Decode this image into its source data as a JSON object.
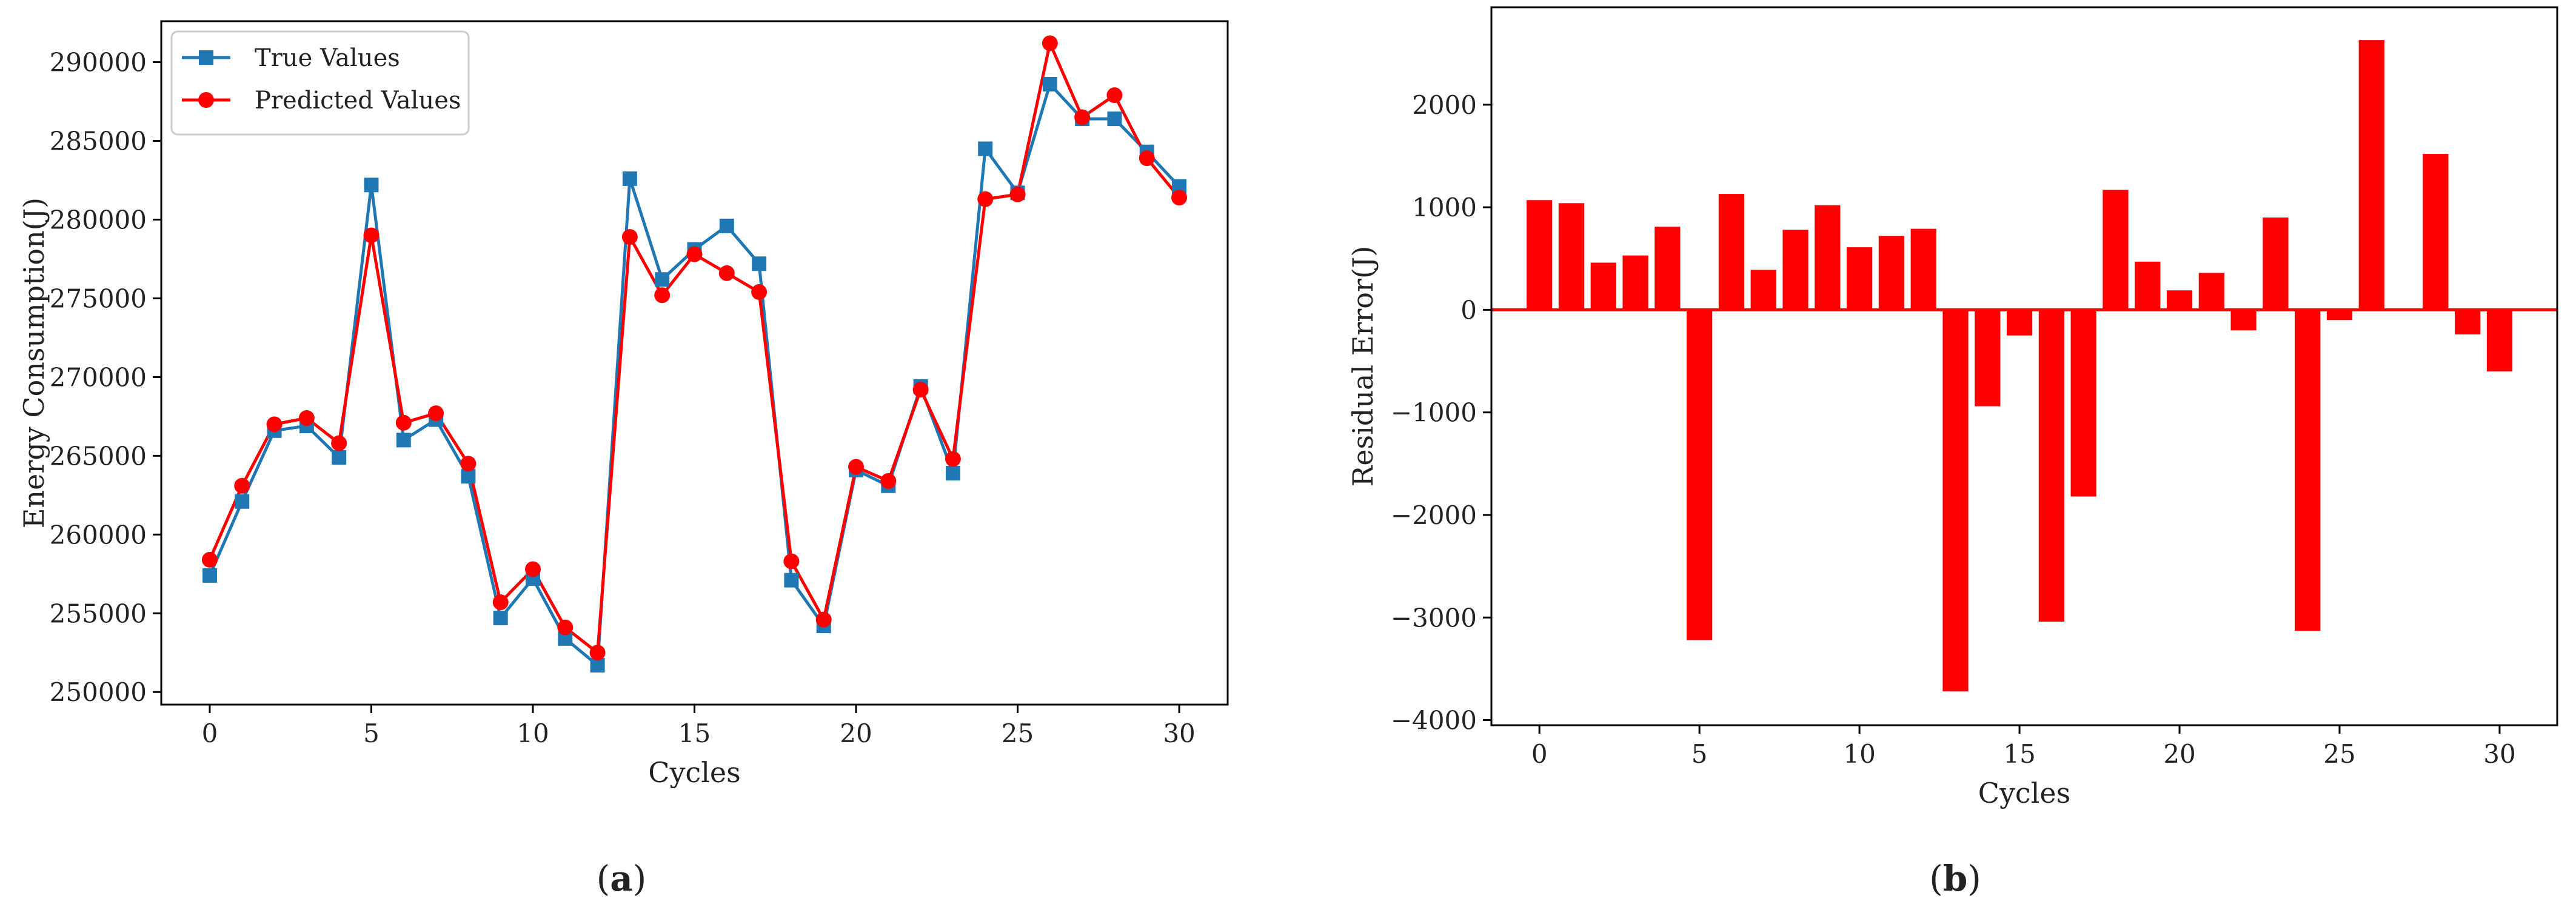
{
  "chart_data": [
    {
      "type": "line",
      "panel_label": {
        "open": "(",
        "letter": "a",
        "close": ")"
      },
      "title": "",
      "xlabel": "Cycles",
      "ylabel": "Energy Consumption(J)",
      "xlim": [
        -1.5,
        31.5
      ],
      "ylim": [
        249200,
        292600
      ],
      "xticks": [
        0,
        5,
        10,
        15,
        20,
        25,
        30
      ],
      "yticks": [
        250000,
        255000,
        260000,
        265000,
        270000,
        275000,
        280000,
        285000,
        290000
      ],
      "grid": false,
      "legend": "top-left",
      "x": [
        0,
        1,
        2,
        3,
        4,
        5,
        6,
        7,
        8,
        9,
        10,
        11,
        12,
        13,
        14,
        15,
        16,
        17,
        18,
        19,
        20,
        21,
        22,
        23,
        24,
        25,
        26,
        27,
        28,
        29,
        30
      ],
      "series": [
        {
          "name": "True Values",
          "color": "#1f77b4",
          "marker": "square",
          "values": [
            257400,
            262100,
            266600,
            266900,
            264900,
            282200,
            266000,
            267300,
            263700,
            254700,
            257200,
            253400,
            251700,
            282600,
            276200,
            278100,
            279600,
            277200,
            257100,
            254200,
            264100,
            263100,
            269400,
            263900,
            284500,
            281700,
            288600,
            286400,
            286400,
            284300,
            282100
          ]
        },
        {
          "name": "Predicted Values",
          "color": "#ff0000",
          "marker": "circle",
          "values": [
            258400,
            263100,
            267000,
            267400,
            265800,
            279000,
            267100,
            267700,
            264500,
            255700,
            257800,
            254100,
            252500,
            278900,
            275200,
            277800,
            276600,
            275400,
            258300,
            254600,
            264300,
            263400,
            269200,
            264800,
            281300,
            281600,
            291200,
            286500,
            287900,
            283900,
            281400
          ]
        }
      ]
    },
    {
      "type": "bar",
      "panel_label": {
        "open": "(",
        "letter": "b",
        "close": ")"
      },
      "title": "",
      "xlabel": "Cycles",
      "ylabel": "Residual Error(J)",
      "xlim": [
        -1.5,
        31.8
      ],
      "ylim": [
        -4050,
        2950
      ],
      "xticks": [
        0,
        5,
        10,
        15,
        20,
        25,
        30
      ],
      "yticks": [
        -4000,
        -3000,
        -2000,
        -1000,
        0,
        1000,
        2000
      ],
      "grid": false,
      "bar_color": "#ff0000",
      "zero_line_color": "#ff0000",
      "x": [
        0,
        1,
        2,
        3,
        4,
        5,
        6,
        7,
        8,
        9,
        10,
        11,
        12,
        13,
        14,
        15,
        16,
        17,
        18,
        19,
        20,
        21,
        22,
        23,
        24,
        25,
        26,
        27,
        28,
        29,
        30
      ],
      "values": [
        1070,
        1040,
        460,
        530,
        810,
        -3220,
        1130,
        390,
        780,
        1020,
        610,
        720,
        790,
        -3720,
        -940,
        -250,
        -3040,
        -1820,
        1170,
        470,
        190,
        360,
        -200,
        900,
        -3130,
        -100,
        2630,
        0,
        1520,
        -240,
        -600
      ]
    }
  ]
}
